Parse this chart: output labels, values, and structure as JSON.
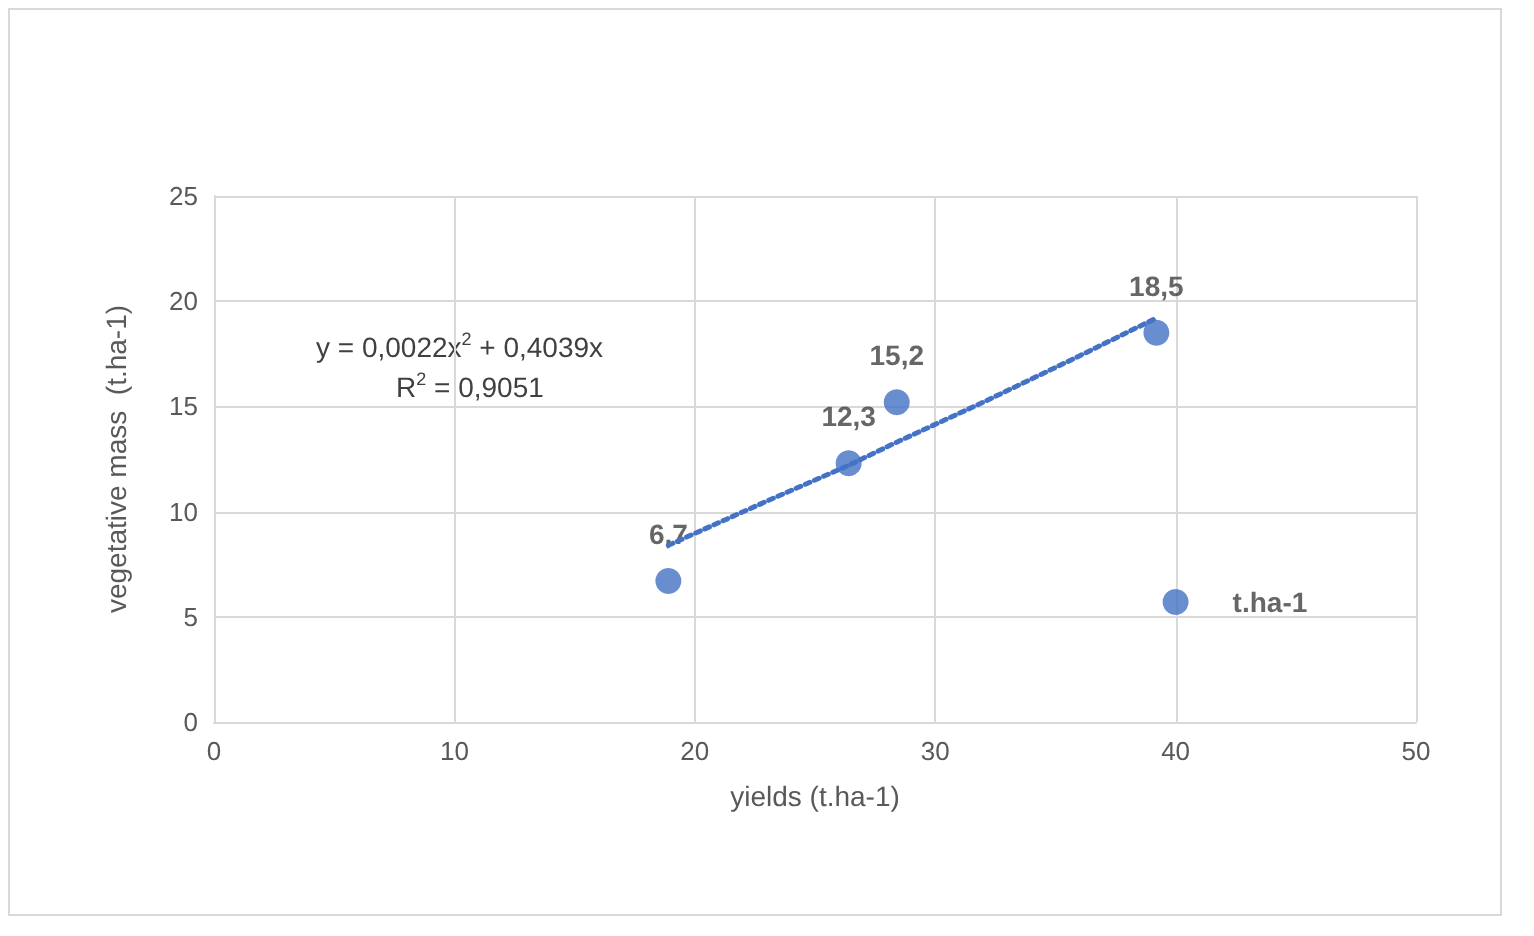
{
  "chart_data": {
    "type": "scatter",
    "xlabel": "yields (t.ha-1)",
    "ylabel": "vegetative mass  (t.ha-1)",
    "series": [
      {
        "color": "#4472c4",
        "x": [
          18.9,
          26.4,
          28.4,
          39.2,
          40
        ],
        "values": [
          6.7,
          12.3,
          15.2,
          18.5,
          5.7
        ],
        "value_labels": [
          "6,7",
          "12,3",
          "15,2",
          "18,5",
          "t.ha-1"
        ]
      },
      {
        "type": "line",
        "color": "#4472c4",
        "line_style": "dotted",
        "marker": "none",
        "x": [
          18.9,
          23,
          26.4,
          28.4,
          32,
          36,
          39.2
        ],
        "values": [
          8.4,
          10.5,
          12.2,
          13.3,
          15.2,
          17.4,
          19.2
        ]
      }
    ],
    "xlim": [
      0,
      50
    ],
    "xticks": [
      0,
      10,
      20,
      30,
      40,
      50
    ],
    "ylim": [
      0,
      25
    ],
    "yticks": [
      0,
      5,
      10,
      15,
      20,
      25
    ],
    "grid": true,
    "marker": "circle",
    "annotations": [
      "y = 0,0022x$^{2}$ + 0,4039x",
      "R$^{2}$ = 0,9051"
    ]
  }
}
